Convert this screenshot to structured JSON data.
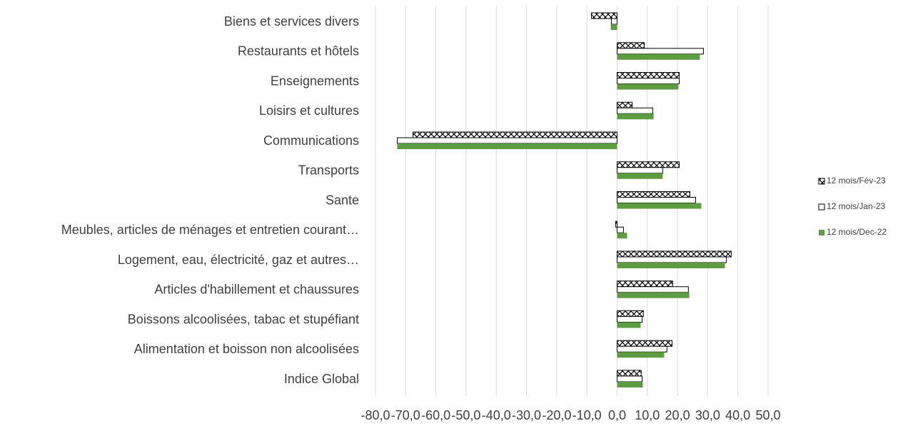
{
  "chart_data": {
    "type": "hbar",
    "categories": [
      "Biens et services divers",
      "Restaurants et hôtels",
      "Enseignements",
      "Loisirs et cultures",
      "Communications",
      "Transports",
      "Sante",
      "Meubles, articles de ménages et entretien courant…",
      "Logement, eau, électricité, gaz et autres…",
      "Articles d'habillement et chaussures",
      "Boissons alcoolisées, tabac et stupéfiant",
      "Alimentation et boisson non alcoolisées",
      "Indice Global"
    ],
    "series": [
      {
        "name": "12 mois/Fév-23",
        "color": "#000000",
        "pattern": "crosshatch",
        "values": [
          -8.5,
          9.0,
          20.6,
          5.0,
          -67.6,
          20.6,
          24.1,
          -0.5,
          37.8,
          18.4,
          8.7,
          18.2,
          8.0
        ]
      },
      {
        "name": "12 mois/Jan-23",
        "color": "#ffffff",
        "values": [
          -1.9,
          28.6,
          20.6,
          11.8,
          -72.8,
          15.1,
          26.0,
          2.1,
          36.2,
          23.6,
          8.3,
          16.5,
          8.3
        ]
      },
      {
        "name": "12 mois/Dec-22",
        "color": "#5e9c41",
        "values": [
          -2.1,
          27.4,
          20.3,
          12.1,
          -72.8,
          15.1,
          27.9,
          3.3,
          35.7,
          23.9,
          7.8,
          15.6,
          8.5
        ]
      }
    ],
    "xlim": [
      -80,
      50
    ],
    "xticks": [
      {
        "value": -80,
        "label": "-80,0"
      },
      {
        "value": -70,
        "label": "-70,0"
      },
      {
        "value": -60,
        "label": "-60,0"
      },
      {
        "value": -50,
        "label": "-50,0"
      },
      {
        "value": -40,
        "label": "-40,0"
      },
      {
        "value": -30,
        "label": "-30,0"
      },
      {
        "value": -20,
        "label": "-20,0"
      },
      {
        "value": -10,
        "label": "-10,0"
      },
      {
        "value": 0,
        "label": "0,0"
      },
      {
        "value": 10,
        "label": "10,0"
      },
      {
        "value": 20,
        "label": "20,0"
      },
      {
        "value": 30,
        "label": "30,0"
      },
      {
        "value": 40,
        "label": "40,0"
      },
      {
        "value": 50,
        "label": "50,0"
      }
    ],
    "grid": true,
    "legend": "right"
  }
}
